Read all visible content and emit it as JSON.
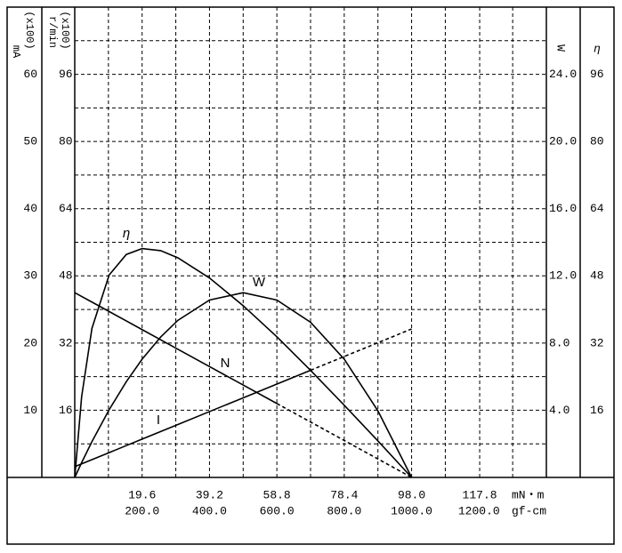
{
  "chart_data": {
    "type": "line",
    "x": [
      0,
      2,
      5,
      10,
      15,
      19.6,
      25,
      30,
      39.2,
      49,
      58.8,
      68.6,
      78.4,
      88.2,
      98
    ],
    "xlim": [
      0,
      137.2
    ],
    "xticks": [
      19.6,
      39.2,
      58.8,
      78.4,
      {
        "value": 98,
        "label": "98.0"
      },
      117.8
    ],
    "x_unit": "mN・m",
    "x2lim": [
      0,
      1400
    ],
    "x2ticks": [
      {
        "value": 200,
        "label": "200.0"
      },
      {
        "value": 400,
        "label": "400.0"
      },
      {
        "value": 600,
        "label": "600.0"
      },
      {
        "value": 800,
        "label": "800.0"
      },
      {
        "value": 1000,
        "label": "1000.0"
      },
      {
        "value": 1200,
        "label": "1200.0"
      }
    ],
    "x2_unit": "gf-cm",
    "ylabel": {
      "unit": "mA",
      "scale": "(x100)"
    },
    "ylim": [
      0,
      70
    ],
    "yticks": [
      10,
      20,
      30,
      40,
      50,
      60
    ],
    "y2label": {
      "unit": "r/min",
      "scale": "(x100)"
    },
    "y2lim": [
      0,
      112
    ],
    "y2ticks": [
      16,
      32,
      48,
      64,
      80,
      96
    ],
    "y3label": "W",
    "y3lim": [
      0,
      28
    ],
    "y3ticks": [
      {
        "value": 4,
        "label": "4.0"
      },
      {
        "value": 8,
        "label": "8.0"
      },
      {
        "value": 12,
        "label": "12.0"
      },
      {
        "value": 16,
        "label": "16.0"
      },
      {
        "value": 20,
        "label": "20.0"
      },
      {
        "value": 24,
        "label": "24.0"
      }
    ],
    "y4label": "η",
    "y4lim": [
      0,
      112
    ],
    "y4ticks": [
      16,
      32,
      48,
      64,
      80,
      96
    ],
    "grid": true,
    "series": [
      {
        "name": "I",
        "axis": "y",
        "color": "#000000",
        "dashed_from": 68.6,
        "values": [
          1.6,
          2.02,
          2.65,
          3.69,
          4.74,
          5.7,
          6.83,
          7.88,
          9.8,
          11.85,
          13.9,
          15.95,
          18.0,
          20.05,
          22.1
        ]
      },
      {
        "name": "N",
        "axis": "y2",
        "color": "#000000",
        "dashed_from": 58.8,
        "values": [
          44,
          43.1,
          41.76,
          39.51,
          37.27,
          35.2,
          32.78,
          30.53,
          26.4,
          22,
          17.6,
          13.2,
          8.8,
          4.4,
          0
        ]
      },
      {
        "name": "W",
        "axis": "y3",
        "color": "#000000",
        "values": [
          0,
          0.88,
          2.13,
          4.03,
          5.7,
          7.04,
          8.36,
          9.35,
          10.56,
          11.0,
          10.56,
          9.24,
          7.04,
          3.96,
          0
        ]
      },
      {
        "name": "η",
        "axis": "y4",
        "color": "#000000",
        "values": [
          0,
          19.2,
          35.5,
          48.2,
          53.1,
          54.5,
          54.0,
          52.3,
          47.5,
          40.9,
          33.5,
          25.5,
          17.2,
          8.7,
          0
        ]
      }
    ]
  }
}
